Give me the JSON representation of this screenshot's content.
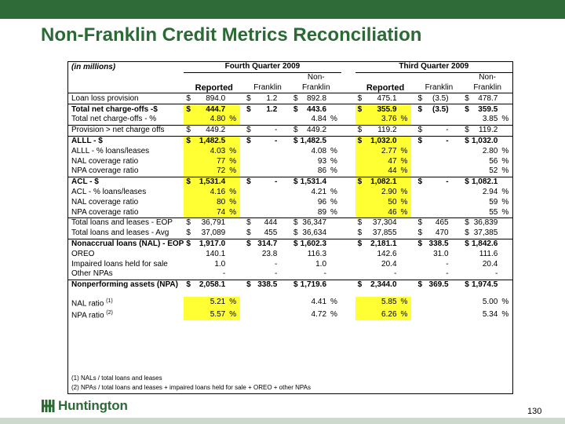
{
  "title": "Non-Franklin Credit Metrics Reconciliation",
  "units": "(in millions)",
  "periods": [
    "Fourth Quarter 2009",
    "Third Quarter 2009"
  ],
  "col_headers": {
    "reported": "Reported",
    "franklin": "Franklin",
    "non_franklin_1": "Non-",
    "non_franklin_2": "Franklin"
  },
  "rows": [
    {
      "label": "Loan loss provision",
      "bold": false,
      "hl": false,
      "q4": [
        [
          "$",
          "894.0",
          ""
        ],
        [
          "$",
          "1.2",
          ""
        ],
        [
          "$",
          "892.8",
          ""
        ]
      ],
      "q3": [
        [
          "$",
          "475.1",
          ""
        ],
        [
          "$",
          "(3.5)",
          ""
        ],
        [
          "$",
          "478.7",
          ""
        ]
      ]
    },
    {
      "label": "Total net charge-offs -$",
      "bold": true,
      "hl": true,
      "sep": true,
      "q4": [
        [
          "$",
          "444.7",
          ""
        ],
        [
          "$",
          "1.2",
          ""
        ],
        [
          "$",
          "443.6",
          ""
        ]
      ],
      "q3": [
        [
          "$",
          "355.9",
          ""
        ],
        [
          "$",
          "(3.5)",
          ""
        ],
        [
          "$",
          "359.5",
          ""
        ]
      ]
    },
    {
      "label": "Total net charge-offs - %",
      "bold": false,
      "hl": true,
      "q4": [
        [
          "",
          "4.80",
          "%"
        ],
        [
          "",
          "",
          ""
        ],
        [
          "",
          "4.84",
          "%"
        ]
      ],
      "q3": [
        [
          "",
          "3.76",
          "%"
        ],
        [
          "",
          "",
          ""
        ],
        [
          "",
          "3.85",
          "%"
        ]
      ]
    },
    {
      "label": "Provision > net charge offs",
      "bold": false,
      "hl": false,
      "sep": true,
      "q4": [
        [
          "$",
          "449.2",
          ""
        ],
        [
          "$",
          "-",
          ""
        ],
        [
          "$",
          "449.2",
          ""
        ]
      ],
      "q3": [
        [
          "$",
          "119.2",
          ""
        ],
        [
          "$",
          "-",
          ""
        ],
        [
          "$",
          "119.2",
          ""
        ]
      ]
    },
    {
      "label": "ALLL - $",
      "bold": true,
      "hl": true,
      "sep": true,
      "q4": [
        [
          "$",
          "1,482.5",
          ""
        ],
        [
          "$",
          "-",
          ""
        ],
        [
          "$",
          "1,482.5",
          ""
        ]
      ],
      "q3": [
        [
          "$",
          "1,032.0",
          ""
        ],
        [
          "$",
          "-",
          ""
        ],
        [
          "$",
          "1,032.0",
          ""
        ]
      ]
    },
    {
      "label": "ALLL - % loans/leases",
      "bold": false,
      "hl": true,
      "q4": [
        [
          "",
          "4.03",
          "%"
        ],
        [
          "",
          "",
          ""
        ],
        [
          "",
          "4.08",
          "%"
        ]
      ],
      "q3": [
        [
          "",
          "2.77",
          "%"
        ],
        [
          "",
          "",
          ""
        ],
        [
          "",
          "2.80",
          "%"
        ]
      ]
    },
    {
      "label": "NAL coverage ratio",
      "bold": false,
      "hl": true,
      "q4": [
        [
          "",
          "77",
          "%"
        ],
        [
          "",
          "",
          ""
        ],
        [
          "",
          "93",
          "%"
        ]
      ],
      "q3": [
        [
          "",
          "47",
          "%"
        ],
        [
          "",
          "",
          ""
        ],
        [
          "",
          "56",
          "%"
        ]
      ]
    },
    {
      "label": "NPA coverage ratio",
      "bold": false,
      "hl": true,
      "q4": [
        [
          "",
          "72",
          "%"
        ],
        [
          "",
          "",
          ""
        ],
        [
          "",
          "86",
          "%"
        ]
      ],
      "q3": [
        [
          "",
          "44",
          "%"
        ],
        [
          "",
          "",
          ""
        ],
        [
          "",
          "52",
          "%"
        ]
      ]
    },
    {
      "label": "ACL - $",
      "bold": true,
      "hl": true,
      "sep": true,
      "q4": [
        [
          "$",
          "1,531.4",
          ""
        ],
        [
          "$",
          "-",
          ""
        ],
        [
          "$",
          "1,531.4",
          ""
        ]
      ],
      "q3": [
        [
          "$",
          "1,082.1",
          ""
        ],
        [
          "$",
          "-",
          ""
        ],
        [
          "$",
          "1,082.1",
          ""
        ]
      ]
    },
    {
      "label": "ACL - % loans/leases",
      "bold": false,
      "hl": true,
      "q4": [
        [
          "",
          "4.16",
          "%"
        ],
        [
          "",
          "",
          ""
        ],
        [
          "",
          "4.21",
          "%"
        ]
      ],
      "q3": [
        [
          "",
          "2.90",
          "%"
        ],
        [
          "",
          "",
          ""
        ],
        [
          "",
          "2.94",
          "%"
        ]
      ]
    },
    {
      "label": "NAL coverage ratio",
      "bold": false,
      "hl": true,
      "q4": [
        [
          "",
          "80",
          "%"
        ],
        [
          "",
          "",
          ""
        ],
        [
          "",
          "96",
          "%"
        ]
      ],
      "q3": [
        [
          "",
          "50",
          "%"
        ],
        [
          "",
          "",
          ""
        ],
        [
          "",
          "59",
          "%"
        ]
      ]
    },
    {
      "label": "NPA coverage ratio",
      "bold": false,
      "hl": true,
      "q4": [
        [
          "",
          "74",
          "%"
        ],
        [
          "",
          "",
          ""
        ],
        [
          "",
          "89",
          "%"
        ]
      ],
      "q3": [
        [
          "",
          "46",
          "%"
        ],
        [
          "",
          "",
          ""
        ],
        [
          "",
          "55",
          "%"
        ]
      ]
    },
    {
      "label": "Total loans and leases - EOP",
      "bold": false,
      "hl": false,
      "sep": true,
      "q4": [
        [
          "$",
          "36,791",
          ""
        ],
        [
          "$",
          "444",
          ""
        ],
        [
          "$",
          "36,347",
          ""
        ]
      ],
      "q3": [
        [
          "$",
          "37,304",
          ""
        ],
        [
          "$",
          "465",
          ""
        ],
        [
          "$",
          "36,839",
          ""
        ]
      ]
    },
    {
      "label": "Total loans and leases - Avg",
      "bold": false,
      "hl": false,
      "q4": [
        [
          "$",
          "37,089",
          ""
        ],
        [
          "$",
          "455",
          ""
        ],
        [
          "$",
          "36,634",
          ""
        ]
      ],
      "q3": [
        [
          "$",
          "37,855",
          ""
        ],
        [
          "$",
          "470",
          ""
        ],
        [
          "$",
          "37,385",
          ""
        ]
      ]
    },
    {
      "label": "Nonaccrual loans (NAL) - EOP",
      "bold": true,
      "hl": false,
      "sep": true,
      "q4": [
        [
          "$",
          "1,917.0",
          ""
        ],
        [
          "$",
          "314.7",
          ""
        ],
        [
          "$",
          "1,602.3",
          ""
        ]
      ],
      "q3": [
        [
          "$",
          "2,181.1",
          ""
        ],
        [
          "$",
          "338.5",
          ""
        ],
        [
          "$",
          "1,842.6",
          ""
        ]
      ]
    },
    {
      "label": "OREO",
      "bold": false,
      "hl": false,
      "q4": [
        [
          "",
          "140.1",
          ""
        ],
        [
          "",
          "23.8",
          ""
        ],
        [
          "",
          "116.3",
          ""
        ]
      ],
      "q3": [
        [
          "",
          "142.6",
          ""
        ],
        [
          "",
          "31.0",
          ""
        ],
        [
          "",
          "111.6",
          ""
        ]
      ]
    },
    {
      "label": "Impaired loans held for sale",
      "bold": false,
      "hl": false,
      "q4": [
        [
          "",
          "1.0",
          ""
        ],
        [
          "",
          "-",
          ""
        ],
        [
          "",
          "1.0",
          ""
        ]
      ],
      "q3": [
        [
          "",
          "20.4",
          ""
        ],
        [
          "",
          "-",
          ""
        ],
        [
          "",
          "20.4",
          ""
        ]
      ]
    },
    {
      "label": "Other NPAs",
      "bold": false,
      "hl": false,
      "q4": [
        [
          "",
          "-",
          ""
        ],
        [
          "",
          "-",
          ""
        ],
        [
          "",
          "-",
          ""
        ]
      ],
      "q3": [
        [
          "",
          "-",
          ""
        ],
        [
          "",
          "-",
          ""
        ],
        [
          "",
          "-",
          ""
        ]
      ]
    },
    {
      "label": "Nonperforming assets (NPA)",
      "bold": true,
      "hl": false,
      "sep": true,
      "q4": [
        [
          "$",
          "2,058.1",
          ""
        ],
        [
          "$",
          "338.5",
          ""
        ],
        [
          "$",
          "1,719.6",
          ""
        ]
      ],
      "q3": [
        [
          "$",
          "2,344.0",
          ""
        ],
        [
          "$",
          "369.5",
          ""
        ],
        [
          "$",
          "1,974.5",
          ""
        ]
      ]
    },
    {
      "label": "NAL ratio",
      "sup": "(1)",
      "bold": false,
      "hl": true,
      "gap": true,
      "q4": [
        [
          "",
          "5.21",
          "%"
        ],
        [
          "",
          "",
          ""
        ],
        [
          "",
          "4.41",
          "%"
        ]
      ],
      "q3": [
        [
          "",
          "5.85",
          "%"
        ],
        [
          "",
          "",
          ""
        ],
        [
          "",
          "5.00",
          "%"
        ]
      ]
    },
    {
      "label": "NPA ratio",
      "sup": "(2)",
      "bold": false,
      "hl": true,
      "q4": [
        [
          "",
          "5.57",
          "%"
        ],
        [
          "",
          "",
          ""
        ],
        [
          "",
          "4.72",
          "%"
        ]
      ],
      "q3": [
        [
          "",
          "6.26",
          "%"
        ],
        [
          "",
          "",
          ""
        ],
        [
          "",
          "5.34",
          "%"
        ]
      ]
    }
  ],
  "footnotes": [
    "(1) NALs / total loans and leases",
    "(2) NPAs / total loans and leases + impaired loans held for sale + OREO + other NPAs"
  ],
  "logo_text": "Huntington",
  "page_number": "130",
  "colors": {
    "title_green": "#2b6a35",
    "bar_green": "#2e6b38",
    "highlight": "#ffff33"
  }
}
